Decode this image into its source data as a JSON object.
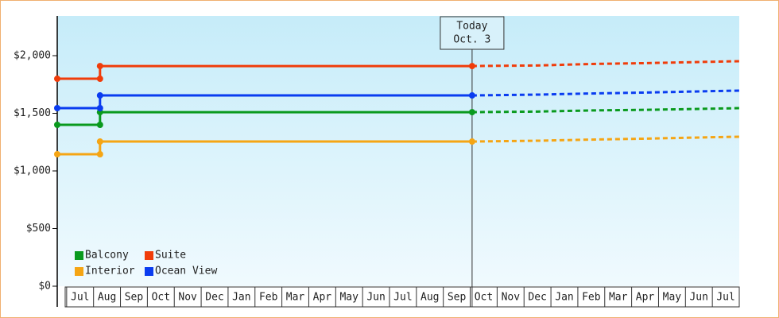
{
  "chart_data": {
    "type": "line",
    "categories": [
      "Jul",
      "Aug",
      "Sep",
      "Oct",
      "Nov",
      "Dec",
      "Jan",
      "Feb",
      "Mar",
      "Apr",
      "May",
      "Jun",
      "Jul",
      "Aug",
      "Sep",
      "Oct",
      "Nov",
      "Dec",
      "Jan",
      "Feb",
      "Mar",
      "Apr",
      "May",
      "Jun",
      "Jul"
    ],
    "xlim": [
      -0.85,
      24.5
    ],
    "ylim": [
      0,
      2345
    ],
    "yticks": [
      {
        "value": 0,
        "label": "$0"
      },
      {
        "value": 500,
        "label": "$500"
      },
      {
        "value": 1000,
        "label": "$1,000"
      },
      {
        "value": 1500,
        "label": "$1,500"
      },
      {
        "value": 2000,
        "label": "$2,000"
      }
    ],
    "x": [
      -0.85,
      0.74,
      0.74,
      14.57
    ],
    "forecast_x": [
      14.57,
      17,
      19,
      21,
      23,
      24.5
    ],
    "today": {
      "x": 14.57,
      "label": "Today",
      "date": "Oct. 3"
    },
    "series": [
      {
        "name": "Balcony",
        "color": "#0a9a1e",
        "values": [
          1400,
          1400,
          1510,
          1510
        ],
        "forecast_values": [
          1510,
          1515,
          1525,
          1530,
          1538,
          1545
        ]
      },
      {
        "name": "Suite",
        "color": "#f03c0a",
        "values": [
          1800,
          1800,
          1910,
          1910
        ],
        "forecast_values": [
          1910,
          1915,
          1928,
          1935,
          1945,
          1952
        ]
      },
      {
        "name": "Interior",
        "color": "#f5a514",
        "values": [
          1145,
          1145,
          1255,
          1255
        ],
        "forecast_values": [
          1255,
          1262,
          1272,
          1280,
          1290,
          1297
        ]
      },
      {
        "name": "Ocean View",
        "color": "#0a3cf0",
        "values": [
          1545,
          1545,
          1655,
          1655
        ],
        "forecast_values": [
          1655,
          1662,
          1672,
          1680,
          1690,
          1697
        ]
      }
    ]
  }
}
